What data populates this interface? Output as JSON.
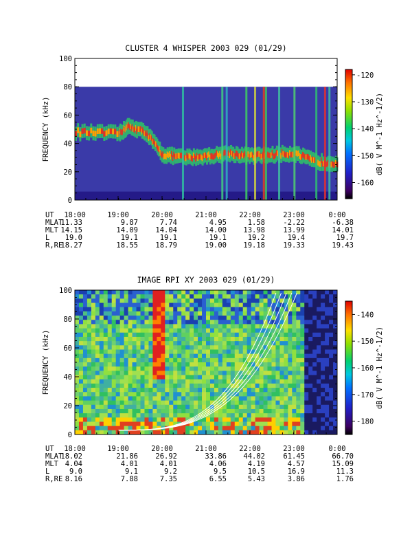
{
  "chart_data": [
    {
      "type": "heatmap",
      "title": "CLUSTER 4 WHISPER 2003 029 (01/29)",
      "ylabel": "FREQUENCY (kHz)",
      "ylim": [
        0,
        100
      ],
      "yticks": [
        "0",
        "20",
        "40",
        "60",
        "80",
        "100"
      ],
      "xticks": [
        "18:00",
        "19:00",
        "20:00",
        "21:00",
        "22:00",
        "23:00",
        "0:00"
      ],
      "colorbar": {
        "label": "dB( V M^-1 Hz^-1/2)",
        "range": [
          -166,
          -118
        ],
        "ticks": [
          "-120",
          "-130",
          "-140",
          "-150",
          "-160"
        ],
        "tick_values": [
          -120,
          -130,
          -140,
          -150,
          -160
        ]
      },
      "ephemeris": [
        {
          "label": "UT",
          "values": [
            "18:00",
            "19:00",
            "20:00",
            "21:00",
            "22:00",
            "23:00",
            "0:00"
          ]
        },
        {
          "label": "MLAT",
          "values": [
            "11.33",
            "9.87",
            "7.74",
            "4.95",
            "1.58",
            "-2.22",
            "-6.38"
          ]
        },
        {
          "label": "MLT",
          "values": [
            "14.15",
            "14.09",
            "14.04",
            "14.00",
            "13.98",
            "13.99",
            "14.01"
          ]
        },
        {
          "label": "L",
          "values": [
            "19.0",
            "19.1",
            "19.1",
            "19.1",
            "19.2",
            "19.4",
            "19.7"
          ]
        },
        {
          "label": "R,RE",
          "values": [
            "18.27",
            "18.55",
            "18.79",
            "19.00",
            "19.18",
            "19.33",
            "19.43"
          ]
        }
      ],
      "features": {
        "data_max_frequency_khz": 80,
        "band_frequency_khz": [
          [
            0,
            48
          ],
          [
            1,
            47
          ],
          [
            1.2,
            52
          ],
          [
            1.6,
            48
          ],
          [
            2.0,
            32
          ],
          [
            2.5,
            30
          ],
          [
            3.0,
            31
          ],
          [
            3.5,
            33
          ],
          [
            4.0,
            31
          ],
          [
            4.5,
            32
          ],
          [
            5.0,
            33
          ],
          [
            5.5,
            27
          ],
          [
            6.0,
            26
          ]
        ],
        "colors": {
          "background": "#3a3aa8",
          "band": "#e83020"
        }
      }
    },
    {
      "type": "heatmap",
      "title": "IMAGE RPI XY 2003 029 (01/29)",
      "ylabel": "FREQUENCY (kHz)",
      "ylim": [
        0,
        100
      ],
      "yticks": [
        "0",
        "20",
        "40",
        "60",
        "80",
        "100"
      ],
      "xticks": [
        "18:00",
        "19:00",
        "20:00",
        "21:00",
        "22:00",
        "23:00",
        "0:00"
      ],
      "colorbar": {
        "label": "dB( V M^-1 Hz^-1/2)",
        "range": [
          -185,
          -135
        ],
        "ticks": [
          "-140",
          "-150",
          "-160",
          "-170",
          "-180"
        ],
        "tick_values": [
          -140,
          -150,
          -160,
          -170,
          -180
        ]
      },
      "ephemeris": [
        {
          "label": "UT",
          "values": [
            "18:00",
            "19:00",
            "20:00",
            "21:00",
            "22:00",
            "23:00",
            "0:00"
          ]
        },
        {
          "label": "MLAT",
          "values": [
            "18.02",
            "21.86",
            "26.92",
            "33.86",
            "44.02",
            "61.45",
            "66.70"
          ]
        },
        {
          "label": "MLT",
          "values": [
            "4.04",
            "4.01",
            "4.01",
            "4.06",
            "4.19",
            "4.57",
            "15.09"
          ]
        },
        {
          "label": "L",
          "values": [
            "9.0",
            "9.1",
            "9.2",
            "9.5",
            "10.5",
            "16.9",
            "11.3"
          ]
        },
        {
          "label": "R,RE",
          "values": [
            "8.16",
            "7.88",
            "7.35",
            "6.55",
            "5.43",
            "3.86",
            "1.76"
          ]
        }
      ],
      "features": {
        "curve_count": 5,
        "colors": {
          "background": "#6cd06c",
          "curves": "#ffffff"
        }
      }
    }
  ]
}
